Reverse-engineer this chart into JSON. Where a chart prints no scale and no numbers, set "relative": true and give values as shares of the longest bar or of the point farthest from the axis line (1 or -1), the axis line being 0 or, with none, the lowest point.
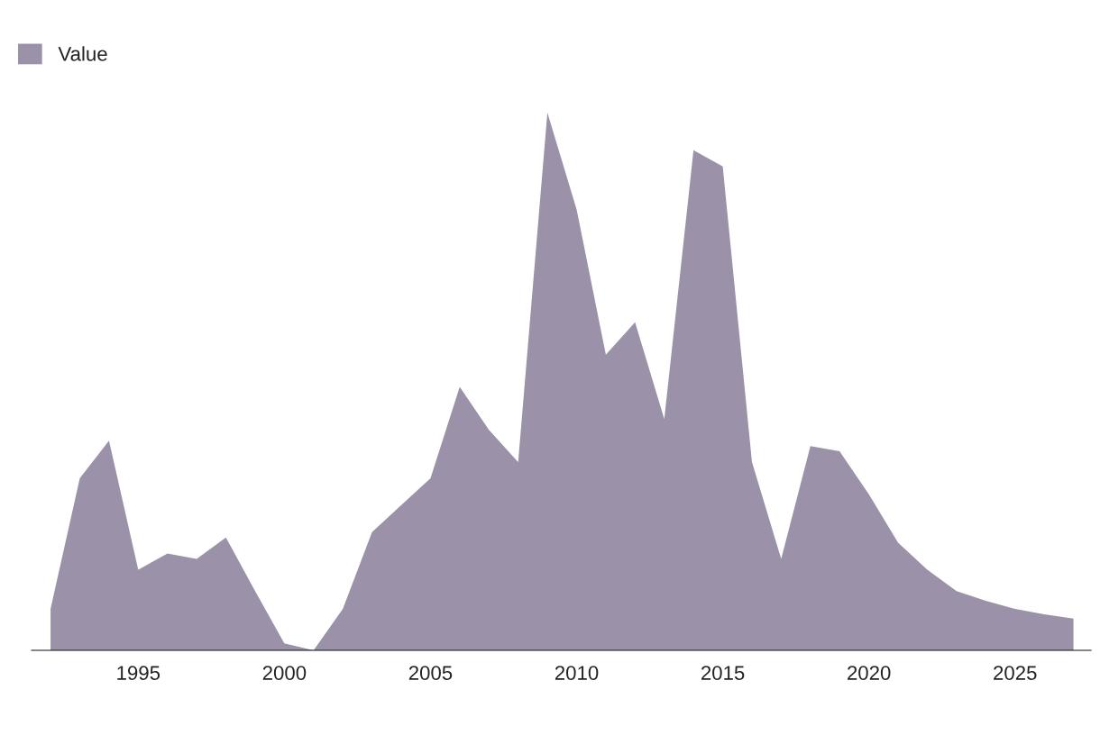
{
  "chart_data": {
    "type": "area",
    "relative": true,
    "x": [
      1992,
      1993,
      1994,
      1995,
      1996,
      1997,
      1998,
      1999,
      2000,
      2001,
      2002,
      2003,
      2004,
      2005,
      2006,
      2007,
      2008,
      2009,
      2010,
      2011,
      2012,
      2013,
      2014,
      2015,
      2016,
      2017,
      2018,
      2019,
      2020,
      2021,
      2022,
      2023,
      2024,
      2025,
      2026,
      2027
    ],
    "xlim": [
      1991.35,
      2027.6
    ],
    "xticks": [
      1995,
      2000,
      2005,
      2010,
      2015,
      2020,
      2025
    ],
    "series": [
      {
        "name": "Value",
        "color": "#9b92aa",
        "values": [
          0.077,
          0.32,
          0.39,
          0.15,
          0.18,
          0.17,
          0.21,
          0.11,
          0.013,
          0,
          0.077,
          0.22,
          0.27,
          0.32,
          0.49,
          0.41,
          0.35,
          1,
          0.82,
          0.55,
          0.61,
          0.43,
          0.93,
          0.9,
          0.35,
          0.17,
          0.38,
          0.37,
          0.29,
          0.2,
          0.15,
          0.11,
          0.092,
          0.077,
          0.067,
          0.059
        ]
      }
    ],
    "legend": "top left",
    "grid": false
  }
}
